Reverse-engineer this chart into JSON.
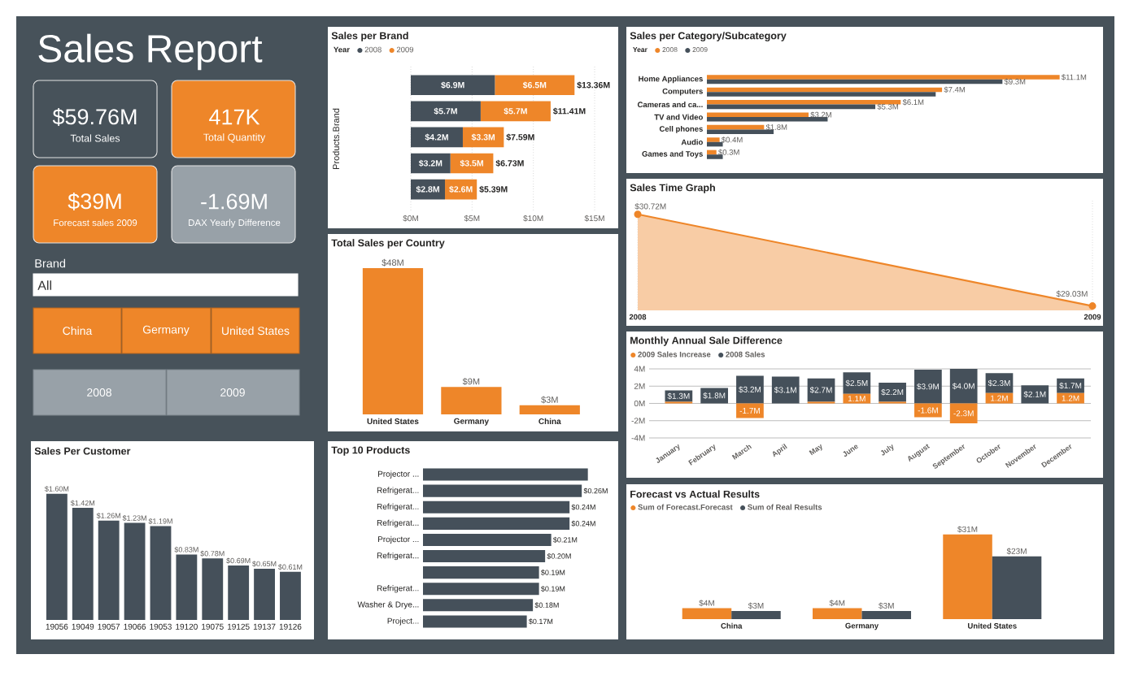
{
  "chart_data": [
    {
      "type": "other",
      "title": "Sales Report",
      "annotations": [
        "$59.76M",
        "Total Sales",
        "417K",
        "Total Quantity",
        "$39M",
        "Forecast sales 2009",
        "-1.69M",
        "DAX Yearly Difference",
        "Brand",
        "All",
        "China",
        "Germany",
        "United States",
        "2008",
        "2009"
      ]
    },
    {
      "type": "bar",
      "title": "Sales per Brand",
      "orientation": "horizontal",
      "stacked": true,
      "categories": [
        null,
        null,
        null,
        null,
        null
      ],
      "ylabel": "Products.Brand",
      "legend_title": "Year",
      "legend": "top left",
      "grid": "x",
      "xlim": [
        0,
        15
      ],
      "xticks": [
        {
          "value": 0,
          "label": "$0M"
        },
        {
          "value": 5,
          "label": "$5M"
        },
        {
          "value": 10,
          "label": "$10M"
        },
        {
          "value": 15,
          "label": "$15M"
        }
      ],
      "series": [
        {
          "name": "2008",
          "color": "#45505A",
          "values": [
            6.86,
            5.7,
            4.245,
            3.23,
            2.79
          ],
          "value_labels": [
            "$6.9M",
            "$5.7M",
            "$4.2M",
            "$3.2M",
            "$2.8M"
          ]
        },
        {
          "name": "2009",
          "color": "#EE8629",
          "values": [
            6.5,
            5.71,
            3.345,
            3.5,
            2.6
          ],
          "value_labels": [
            "$6.5M",
            "$5.7M",
            "$3.3M",
            "$3.5M",
            "$2.6M"
          ]
        }
      ],
      "totals": [
        "$13.36M",
        "$11.41M",
        "$7.59M",
        "$6.73M",
        "$5.39M"
      ]
    },
    {
      "type": "bar",
      "title": "Sales per Category/Subcategory",
      "orientation": "horizontal",
      "categories": [
        "Home Appliances",
        "Computers",
        "Cameras and ca...",
        "TV and Video",
        "Cell phones",
        "Audio",
        "Games and Toys"
      ],
      "legend_title": "Year",
      "legend": "top left",
      "series": [
        {
          "name": "2008",
          "color": "#EE8629",
          "values": [
            11.1,
            7.4,
            6.1,
            3.2,
            1.8,
            0.4,
            0.3
          ],
          "value_labels": [
            "$11.1M",
            "$7.4M",
            "$6.1M",
            "$3.2M",
            "$1.8M",
            "$0.4M",
            "$0.3M"
          ]
        },
        {
          "name": "2009",
          "color": "#45505A",
          "values": [
            9.3,
            7.2,
            5.3,
            3.8,
            2.1,
            0.5,
            0.5
          ],
          "value_labels": [
            "$9.3M",
            null,
            "$5.3M",
            null,
            null,
            null,
            null
          ]
        }
      ]
    },
    {
      "type": "area",
      "title": "Sales Time Graph",
      "categories": [
        "2008",
        "2009"
      ],
      "ylim": [
        28.95,
        31.0
      ],
      "grid": "x",
      "marker": "circle",
      "color": "#EE8629",
      "values": [
        30.72,
        29.03
      ],
      "value_labels": [
        "$30.72M",
        "$29.03M"
      ]
    },
    {
      "type": "bar",
      "title": "Total Sales per Country",
      "categories": [
        "United States",
        "Germany",
        "China"
      ],
      "color": "#EE8629",
      "values": [
        48,
        9,
        3
      ],
      "value_labels": [
        "$48M",
        "$9M",
        "$3M"
      ]
    },
    {
      "type": "bar",
      "title": "Monthly Annual Sale Difference",
      "stacked": true,
      "categories": [
        "January",
        "February",
        "March",
        "April",
        "May",
        "June",
        "July",
        "August",
        "September",
        "October",
        "November",
        "December"
      ],
      "ylim": [
        -4,
        4
      ],
      "yticks": [
        {
          "value": -4,
          "label": "-4M"
        },
        {
          "value": -2,
          "label": "-2M"
        },
        {
          "value": 0,
          "label": "0M"
        },
        {
          "value": 2,
          "label": "2M"
        },
        {
          "value": 4,
          "label": "4M"
        }
      ],
      "grid": "y",
      "legend": "top left",
      "series": [
        {
          "name": "2009 Sales Increase",
          "color": "#EE8629",
          "values": [
            0.2,
            null,
            -1.7,
            null,
            0.2,
            1.1,
            0.2,
            -1.6,
            -2.3,
            1.2,
            null,
            1.2
          ],
          "value_labels": [
            null,
            null,
            "-1.7M",
            null,
            null,
            "1.1M",
            null,
            "-1.6M",
            "-2.3M",
            "1.2M",
            null,
            "1.2M"
          ]
        },
        {
          "name": "2008 Sales",
          "color": "#45505A",
          "values": [
            1.3,
            1.8,
            3.2,
            3.1,
            2.7,
            2.5,
            2.2,
            3.9,
            4.0,
            2.3,
            2.1,
            1.7
          ],
          "value_labels": [
            "$1.3M",
            "$1.8M",
            "$3.2M",
            "$3.1M",
            "$2.7M",
            "$2.5M",
            "$2.2M",
            "$3.9M",
            "$4.0M",
            "$2.3M",
            "$2.1M",
            "$1.7M"
          ]
        }
      ]
    },
    {
      "type": "bar",
      "title": "Sales Per Customer",
      "categories": [
        "19056",
        "19049",
        "19057",
        "19066",
        "19053",
        "19120",
        "19075",
        "19125",
        "19137",
        "19126"
      ],
      "color": "#45505A",
      "values": [
        1.6,
        1.42,
        1.26,
        1.23,
        1.19,
        0.83,
        0.78,
        0.69,
        0.65,
        0.61
      ],
      "value_labels": [
        "$1.60M",
        "$1.42M",
        "$1.26M",
        "$1.23M",
        "$1.19M",
        "$0.83M",
        "$0.78M",
        "$0.69M",
        "$0.65M",
        "$0.61M"
      ]
    },
    {
      "type": "bar",
      "title": "Top 10 Products",
      "orientation": "horizontal",
      "categories": [
        "Projector ...",
        "Refrigerat...",
        "Refrigerat...",
        "Refrigerat...",
        "Projector ...",
        "Refrigerat...",
        null,
        "Refrigerat...",
        "Washer & Drye...",
        "Project..."
      ],
      "color": "#45505A",
      "values": [
        0.27,
        0.26,
        0.24,
        0.24,
        0.21,
        0.2,
        0.19,
        0.19,
        0.18,
        0.17
      ],
      "value_labels": [
        null,
        "$0.26M",
        "$0.24M",
        "$0.24M",
        "$0.21M",
        "$0.20M",
        "$0.19M",
        "$0.19M",
        "$0.18M",
        "$0.17M"
      ]
    },
    {
      "type": "bar",
      "title": "Forecast vs Actual Results",
      "categories": [
        "China",
        "Germany",
        "United States"
      ],
      "legend": "top left",
      "series": [
        {
          "name": "Sum of Forecast.Forecast",
          "color": "#EE8629",
          "values": [
            4,
            4,
            31
          ],
          "value_labels": [
            "$4M",
            "$4M",
            "$31M"
          ]
        },
        {
          "name": "Sum of Real Results",
          "color": "#45505A",
          "values": [
            3,
            3,
            23
          ],
          "value_labels": [
            "$3M",
            "$3M",
            "$23M"
          ]
        }
      ]
    }
  ]
}
